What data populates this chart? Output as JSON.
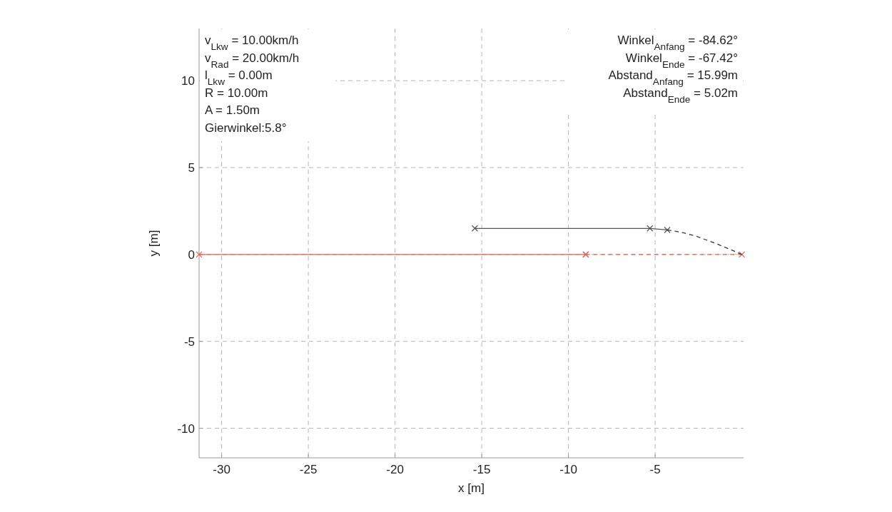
{
  "chart_data": {
    "type": "line",
    "xlabel": "x [m]",
    "ylabel": "y [m]",
    "xlim": [
      -31.3,
      0.1
    ],
    "ylim": [
      -11.7,
      13
    ],
    "xticks": [
      -30,
      -25,
      -20,
      -15,
      -10,
      -5
    ],
    "yticks": [
      -10,
      -5,
      0,
      5,
      10
    ],
    "grid": true,
    "marker": "cross",
    "series": [
      {
        "color": "#f05a4f",
        "x": [
          -31.3,
          -9
        ],
        "values": [
          0,
          0
        ],
        "line_style": "solid"
      },
      {
        "color": "#f05a4f",
        "x": [
          -9,
          0
        ],
        "values": [
          0,
          0
        ],
        "line_style": "dashed"
      },
      {
        "color": "#555555",
        "x": [
          -15.4,
          -5.3,
          -4.3
        ],
        "values": [
          1.5,
          1.5,
          1.41
        ],
        "line_style": "solid"
      },
      {
        "color": "#333333",
        "x": [
          -4.3,
          -3.5,
          -2.6,
          -1.5,
          -0.7,
          0
        ],
        "values": [
          1.41,
          1.28,
          1.04,
          0.63,
          0.3,
          0
        ],
        "line_style": "dashed",
        "marker": "none"
      }
    ],
    "annotations": [
      "v$_{Lkw}$ = 10.00km/h",
      "v$_{Rad}$ = 20.00km/h",
      "l$_{Lkw}$ = 0.00m",
      "R = 10.00m",
      "A = 1.50m",
      "Gierwinkel:5.8°",
      "Winkel$_{Anfang}$ = -84.62°",
      "Winkel$_{Ende}$ = -67.42°",
      "Abstand$_{Anfang}$ = 15.99m",
      "Abstand$_{Ende}$ = 5.02m"
    ]
  }
}
